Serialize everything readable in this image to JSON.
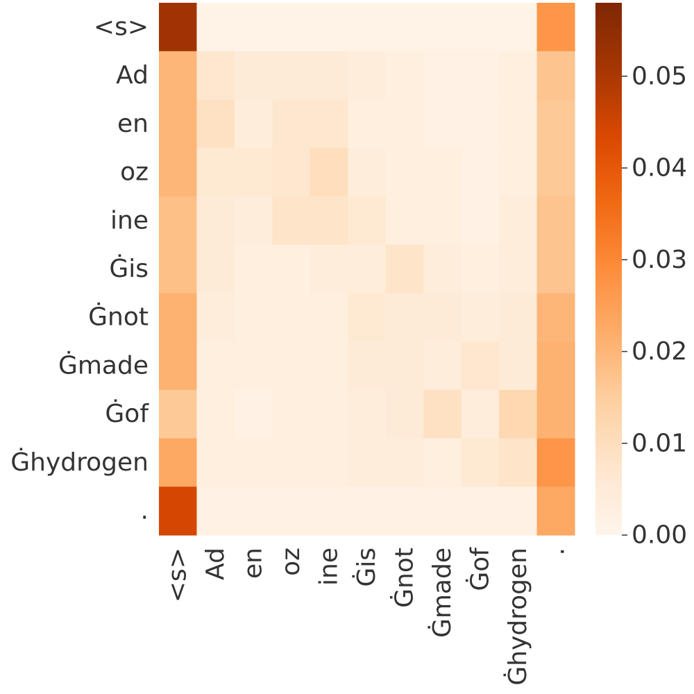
{
  "chart_data": {
    "type": "heatmap",
    "title": "",
    "xlabel": "",
    "ylabel": "",
    "x_labels": [
      "<s>",
      "Ad",
      "en",
      "oz",
      "ine",
      "Ġis",
      "Ġnot",
      "Ġmade",
      "Ġof",
      "Ġhydrogen",
      "."
    ],
    "y_labels": [
      "<s>",
      "Ad",
      "en",
      "oz",
      "ine",
      "Ġis",
      "Ġnot",
      "Ġmade",
      "Ġof",
      "Ġhydrogen",
      "."
    ],
    "values": [
      [
        0.052,
        0.001,
        0.001,
        0.001,
        0.001,
        0.001,
        0.001,
        0.001,
        0.001,
        0.001,
        0.027
      ],
      [
        0.02,
        0.007,
        0.005,
        0.005,
        0.005,
        0.004,
        0.003,
        0.002,
        0.002,
        0.003,
        0.017
      ],
      [
        0.02,
        0.009,
        0.004,
        0.007,
        0.007,
        0.003,
        0.003,
        0.002,
        0.002,
        0.003,
        0.016
      ],
      [
        0.02,
        0.006,
        0.006,
        0.007,
        0.01,
        0.004,
        0.003,
        0.003,
        0.002,
        0.003,
        0.016
      ],
      [
        0.018,
        0.005,
        0.004,
        0.008,
        0.008,
        0.006,
        0.003,
        0.003,
        0.002,
        0.004,
        0.017
      ],
      [
        0.018,
        0.005,
        0.003,
        0.003,
        0.004,
        0.004,
        0.008,
        0.004,
        0.003,
        0.004,
        0.017
      ],
      [
        0.021,
        0.004,
        0.003,
        0.003,
        0.003,
        0.006,
        0.005,
        0.005,
        0.004,
        0.005,
        0.02
      ],
      [
        0.021,
        0.003,
        0.003,
        0.003,
        0.003,
        0.005,
        0.005,
        0.004,
        0.007,
        0.005,
        0.021
      ],
      [
        0.016,
        0.003,
        0.002,
        0.003,
        0.003,
        0.004,
        0.005,
        0.009,
        0.004,
        0.012,
        0.021
      ],
      [
        0.023,
        0.003,
        0.003,
        0.003,
        0.003,
        0.004,
        0.004,
        0.003,
        0.006,
        0.008,
        0.027
      ],
      [
        0.044,
        0.002,
        0.002,
        0.002,
        0.002,
        0.002,
        0.002,
        0.002,
        0.002,
        0.002,
        0.023
      ]
    ],
    "colorbar": {
      "min": 0.0,
      "max": 0.058,
      "ticks": [
        0.0,
        0.01,
        0.02,
        0.03,
        0.04,
        0.05
      ],
      "tick_labels": [
        "0.00",
        "0.01",
        "0.02",
        "0.03",
        "0.04",
        "0.05"
      ],
      "colormap": "Oranges",
      "color_stops": [
        "#fff5eb",
        "#fee6ce",
        "#fdd0a2",
        "#fdae6b",
        "#fd8d3c",
        "#f16913",
        "#d94801",
        "#a63603",
        "#7f2704"
      ]
    },
    "grid": false,
    "legend": "colorbar-right"
  }
}
